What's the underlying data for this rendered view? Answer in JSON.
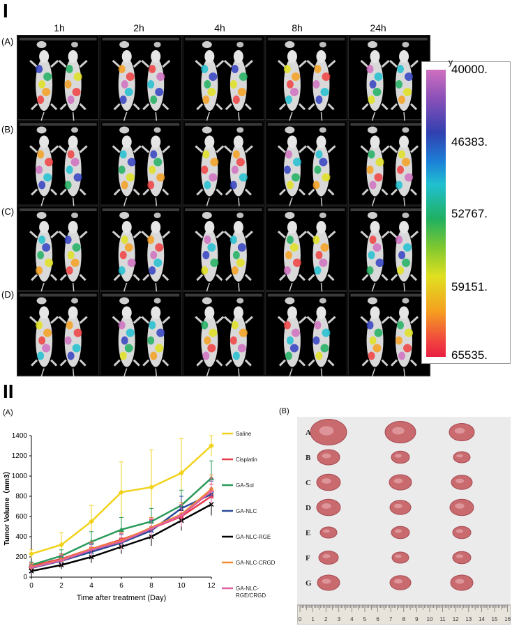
{
  "section1": {
    "label": "I",
    "times": [
      "1h",
      "2h",
      "4h",
      "8h",
      "24h"
    ],
    "rows": [
      "(A)",
      "(B)",
      "(C)",
      "(D)"
    ],
    "scale_unit": "y",
    "scale_ticks": [
      "40000.",
      "46383.",
      "52767.",
      "59151.",
      "65535."
    ]
  },
  "section2": {
    "label": "II",
    "panel_a": "(A)",
    "panel_b": "(B)"
  },
  "photo": {
    "letters": [
      "A",
      "B",
      "C",
      "D",
      "E",
      "F",
      "G"
    ],
    "ruler_marks": [
      "0",
      "1",
      "2",
      "3",
      "4",
      "5",
      "6",
      "7",
      "8",
      "9",
      "10",
      "11",
      "12",
      "13",
      "14",
      "15",
      "16"
    ]
  },
  "chart_data": {
    "type": "line",
    "ylabel": "Tumor Volume（mm3）",
    "xlabel": "Time after treatment (Day)",
    "x": [
      0,
      2,
      4,
      6,
      8,
      10,
      12
    ],
    "xlim": [
      0,
      12
    ],
    "ylim": [
      0,
      1400
    ],
    "yticks": [
      0,
      200,
      400,
      600,
      800,
      1000,
      1200,
      1400
    ],
    "series": [
      {
        "name": "Saline",
        "color": "#f2d21b",
        "marker": "diamond",
        "values": [
          230,
          320,
          550,
          840,
          890,
          1030,
          1300
        ],
        "err": [
          40,
          120,
          160,
          300,
          370,
          340,
          100
        ]
      },
      {
        "name": "Cisplatin",
        "color": "#e83a4a",
        "marker": "square",
        "values": [
          110,
          180,
          280,
          370,
          480,
          600,
          800
        ],
        "err": [
          30,
          50,
          60,
          80,
          90,
          100,
          120
        ]
      },
      {
        "name": "GA-Sol",
        "color": "#2a9a5a",
        "marker": "triangle",
        "values": [
          120,
          210,
          350,
          470,
          550,
          710,
          980
        ],
        "err": [
          30,
          60,
          100,
          120,
          130,
          150,
          170
        ]
      },
      {
        "name": "GA-NLC",
        "color": "#2b4a9a",
        "marker": "x",
        "values": [
          90,
          160,
          250,
          340,
          460,
          680,
          820
        ],
        "err": [
          30,
          50,
          70,
          80,
          100,
          120,
          130
        ]
      },
      {
        "name": "GA-NLC-RGE",
        "color": "#000000",
        "marker": "x",
        "values": [
          60,
          120,
          200,
          300,
          400,
          560,
          720
        ],
        "err": [
          25,
          40,
          60,
          70,
          90,
          100,
          110
        ]
      },
      {
        "name": "GA-NLC-CRGD",
        "color": "#f08a2a",
        "marker": "circle",
        "values": [
          100,
          170,
          280,
          360,
          490,
          620,
          870
        ],
        "err": [
          30,
          50,
          70,
          80,
          100,
          120,
          140
        ]
      },
      {
        "name": "GA-NLC-\nRGE/CRGD",
        "color": "#e060a0",
        "marker": "dash",
        "values": [
          95,
          165,
          270,
          350,
          480,
          610,
          850
        ],
        "err": [
          30,
          50,
          70,
          80,
          100,
          110,
          130
        ]
      }
    ]
  }
}
